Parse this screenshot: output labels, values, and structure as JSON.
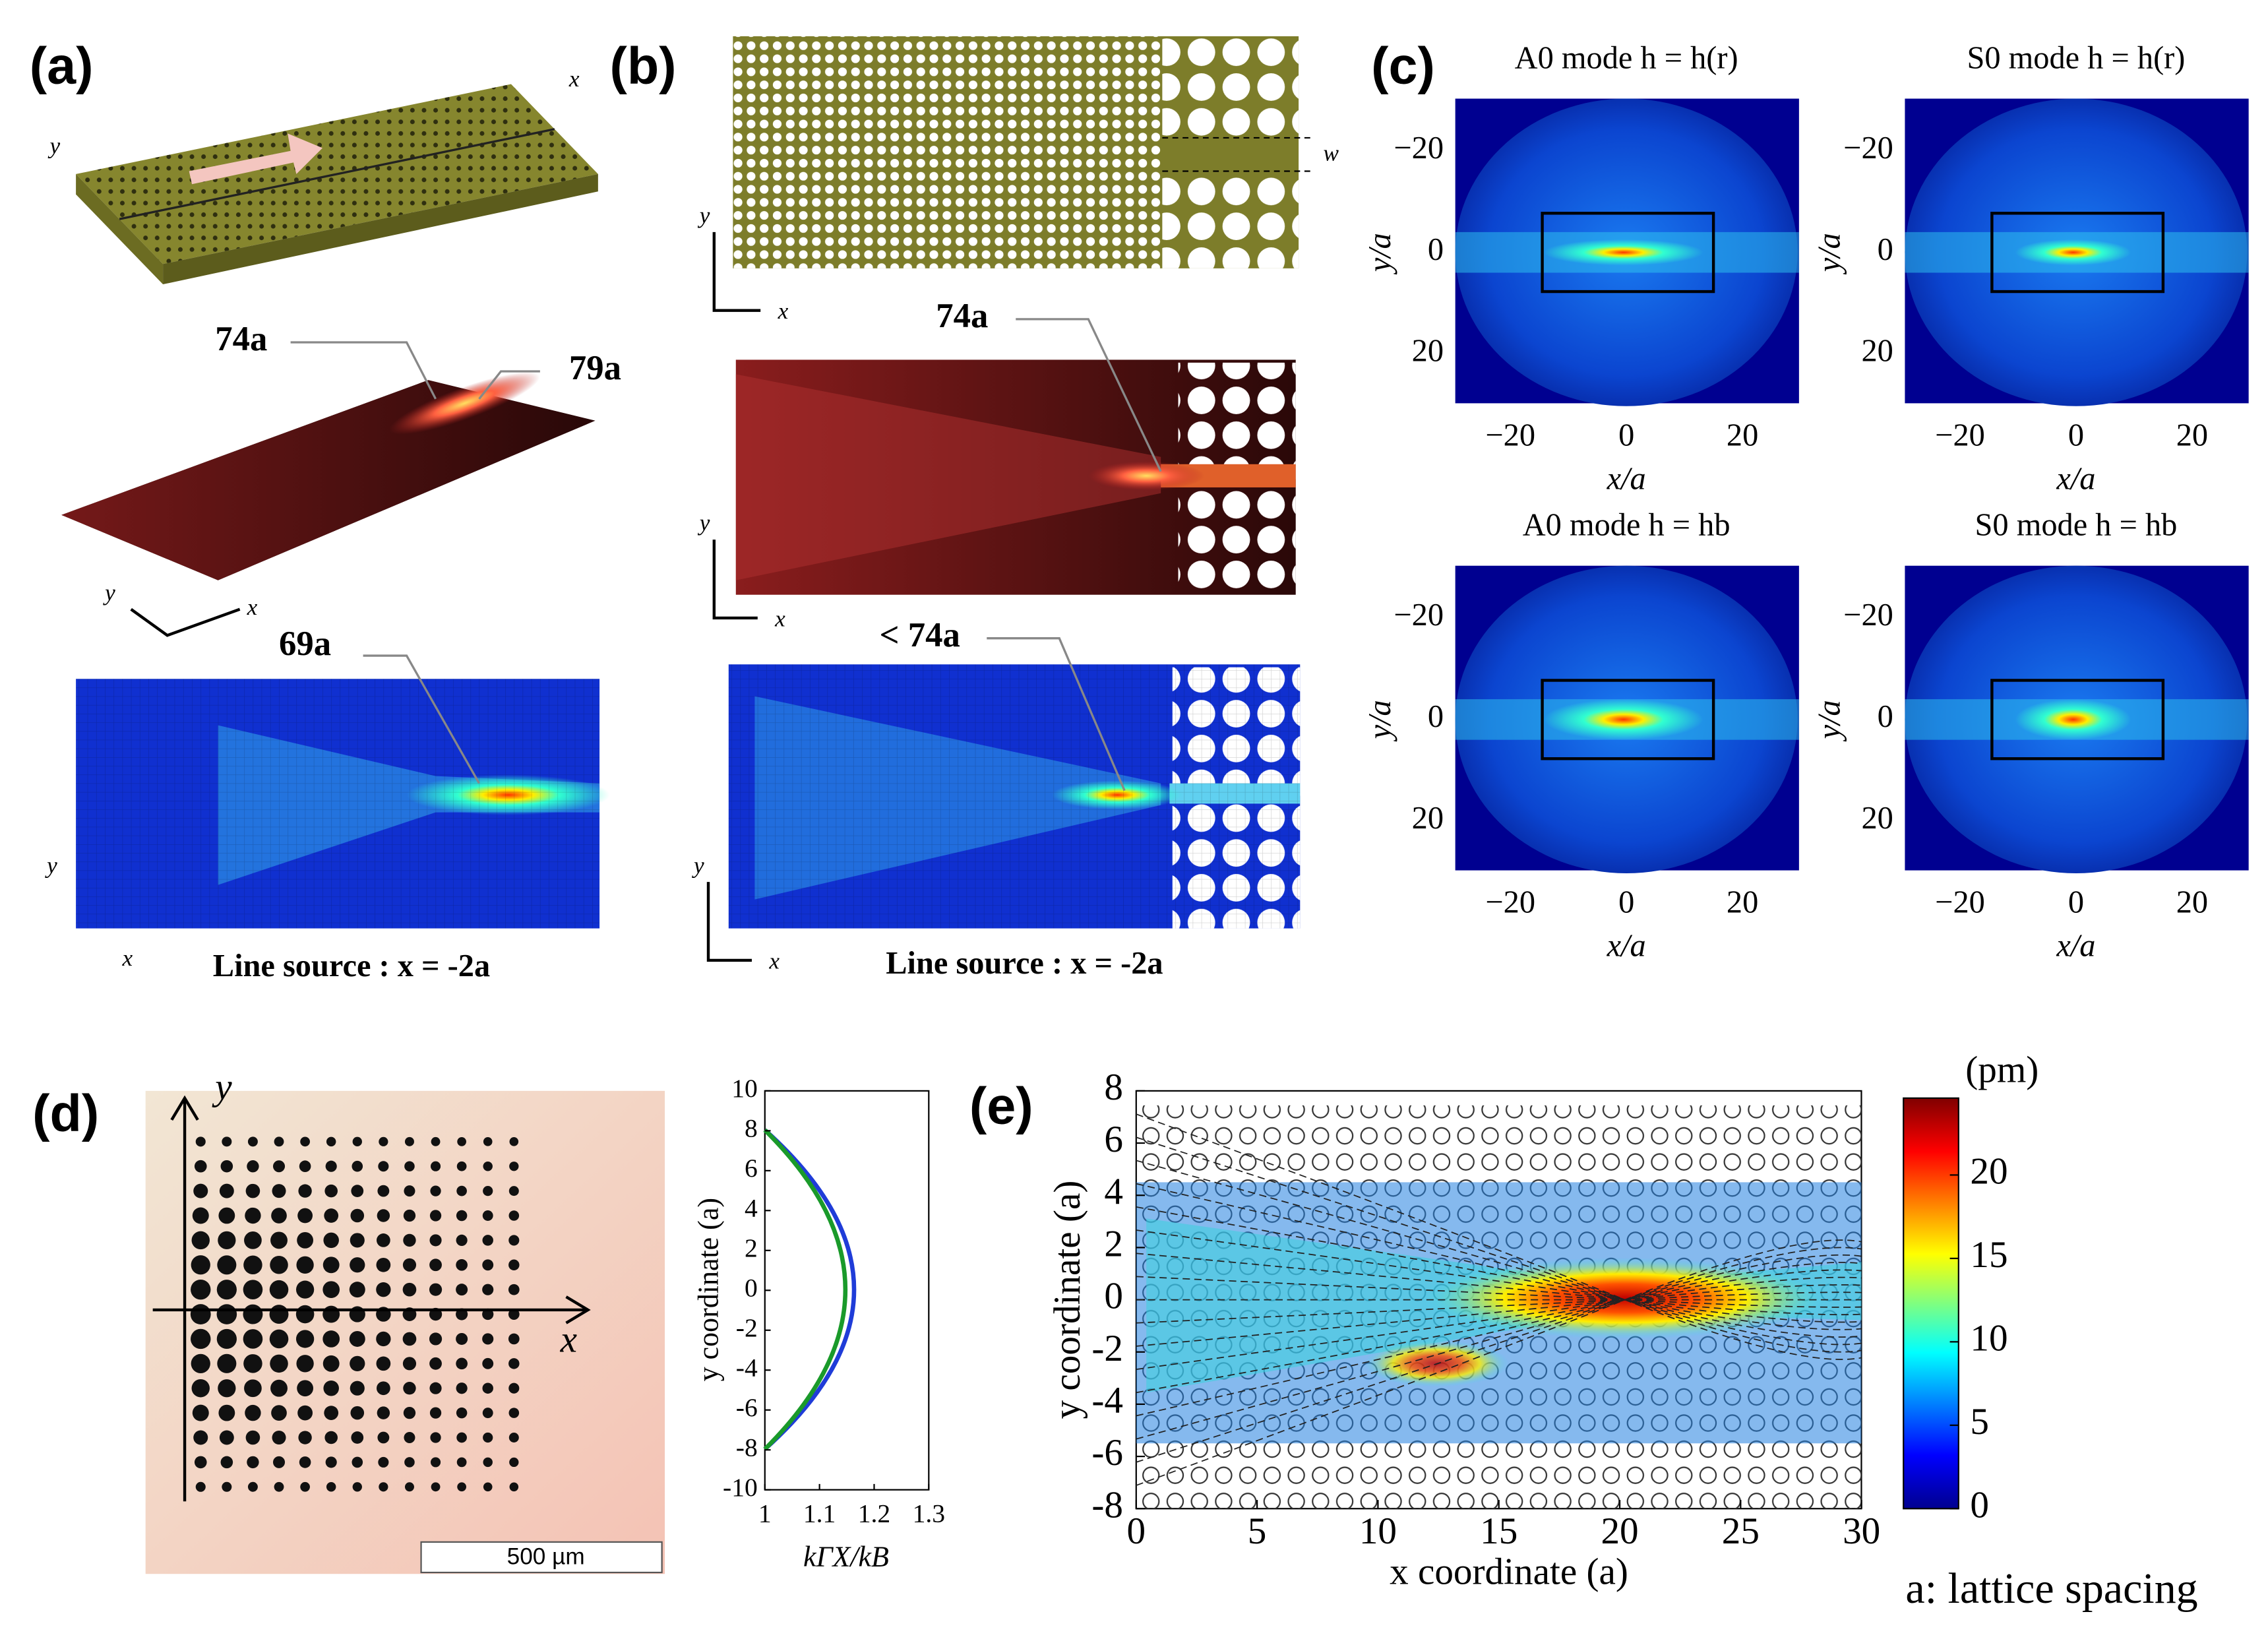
{
  "panel_a": {
    "label": "(a)",
    "axis_top": [
      "x",
      "y"
    ],
    "axis_mid": [
      "y",
      "x"
    ],
    "axis_bottom": [
      "y",
      "x"
    ],
    "annotations": [
      "74a",
      "79a",
      "69a"
    ],
    "caption": "Line source : x = -2a"
  },
  "panel_b": {
    "label": "(b)",
    "width_label": "w",
    "axis_top": [
      "y",
      "x"
    ],
    "axis_mid": [
      "y",
      "x"
    ],
    "axis_bottom": [
      "y",
      "x"
    ],
    "annotations": [
      "74a",
      "< 74a"
    ],
    "caption": "Line source : x = -2a"
  },
  "panel_c": {
    "label": "(c)",
    "plots": [
      {
        "title": "A0 mode h = h(r)"
      },
      {
        "title": "S0 mode h = h(r)"
      },
      {
        "title": "A0 mode h = hb"
      },
      {
        "title": "S0 mode h = hb"
      }
    ],
    "xticks": [
      "−20",
      "0",
      "20"
    ],
    "yticks": [
      "−20",
      "0",
      "20"
    ],
    "xlabel": "x/a",
    "ylabel": "y/a"
  },
  "panel_d": {
    "label": "(d)",
    "axis_x": "x",
    "axis_y": "y",
    "scale_bar": "500 µm",
    "yticks": [
      10,
      8,
      6,
      4,
      2,
      0,
      -2,
      -4,
      -6,
      -8,
      -10
    ],
    "xticks": [
      1,
      1.1,
      1.2,
      1.3
    ],
    "ylabel": "y coordinate (a)",
    "xlabel": "kΓX/kB"
  },
  "panel_e": {
    "label": "(e)",
    "xticks": [
      0,
      5,
      10,
      15,
      20,
      25,
      30
    ],
    "yticks": [
      8,
      6,
      4,
      2,
      0,
      -2,
      -4,
      -6,
      -8
    ],
    "xlabel": "x coordinate (a)",
    "ylabel": "y coordinate (a)",
    "colorbar_unit": "(pm)",
    "colorbar_ticks": [
      0,
      5,
      10,
      15,
      20
    ],
    "note": "a: lattice spacing"
  }
}
